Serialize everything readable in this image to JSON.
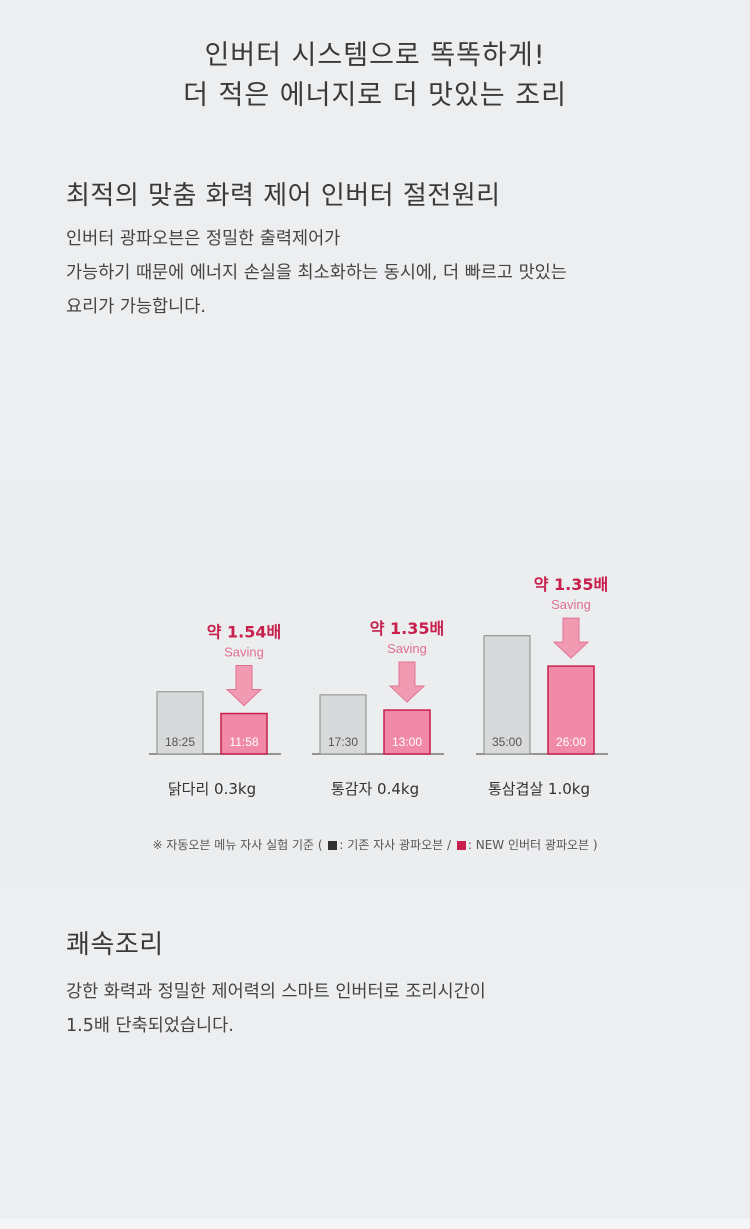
{
  "headline": {
    "line1": "인버터 시스템으로 똑똑하게!",
    "line2": "더 적은 에너지로 더 맛있는 조리"
  },
  "section1": {
    "title": "최적의 맞춤 화력 제어 인버터 절전원리",
    "body_lines": [
      "인버터 광파오븐은 정밀한 출력제어가",
      "가능하기 때문에 에너지 손실을 최소화하는 동시에, 더 빠르고 맛있는",
      "요리가 가능합니다."
    ]
  },
  "chart_data": {
    "type": "bar",
    "categories": [
      "닭다리 0.3kg",
      "통감자 0.4kg",
      "통삼겹살 1.0kg"
    ],
    "series": [
      {
        "name": "기존 자사 광파오븐",
        "values": [
          18.42,
          17.5,
          35.0
        ],
        "labels": [
          "18:25",
          "17:30",
          "35:00"
        ],
        "color": "#d7d9db"
      },
      {
        "name": "NEW 인버터 광파오븐",
        "values": [
          11.97,
          13.0,
          26.0
        ],
        "labels": [
          "11:58",
          "13:00",
          "26:00"
        ],
        "color": "#f08aa8"
      }
    ],
    "annotations": [
      {
        "category": "닭다리 0.3kg",
        "ratio": "약 1.54배",
        "sub": "Saving"
      },
      {
        "category": "통감자 0.4kg",
        "ratio": "약 1.35배",
        "sub": "Saving"
      },
      {
        "category": "통삼겹살 1.0kg",
        "ratio": "약 1.35배",
        "sub": "Saving"
      }
    ],
    "ylim": [
      0,
      40
    ],
    "accent_color": "#c8204d",
    "grid": false
  },
  "footnote": {
    "prefix": "※ 자동오븐 메뉴 자사 실험 기준 (",
    "legend_old": ": 기존 자사 광파오븐 /",
    "legend_new": ": NEW 인버터 광파오븐 )"
  },
  "section2": {
    "title": "쾌속조리",
    "body_lines": [
      "강한 화력과 정밀한 제어력의 스마트 인버터로 조리시간이",
      "1.5배 단축되었습니다."
    ]
  }
}
